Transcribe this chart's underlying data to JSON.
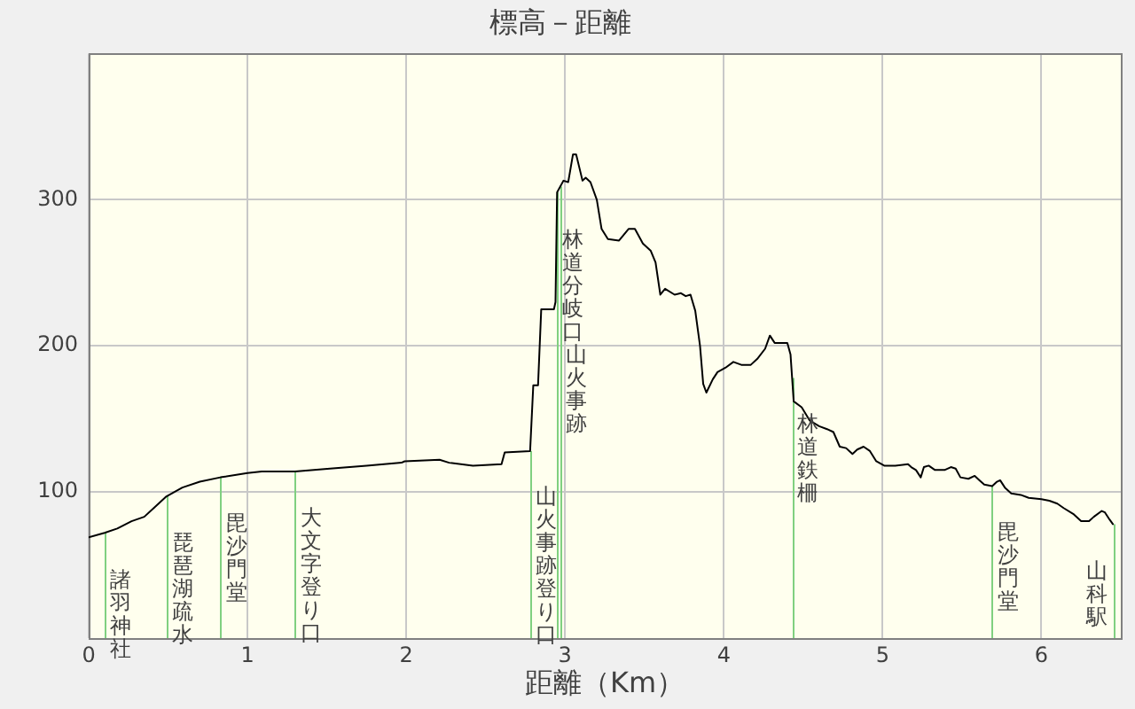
{
  "chart_data": {
    "type": "line",
    "title": "標高－距離",
    "xlabel": "距離（Km）",
    "x": [
      0,
      0.1,
      0.18,
      0.27,
      0.35,
      0.41,
      0.49,
      0.59,
      0.7,
      0.83,
      1.0,
      1.09,
      1.3,
      1.52,
      1.75,
      1.97,
      1.99,
      2.21,
      2.27,
      2.42,
      2.6,
      2.62,
      2.78,
      2.8,
      2.83,
      2.85,
      2.93,
      2.94,
      2.95,
      2.99,
      3.02,
      3.05,
      3.07,
      3.11,
      3.13,
      3.16,
      3.2,
      3.23,
      3.27,
      3.34,
      3.4,
      3.44,
      3.49,
      3.54,
      3.57,
      3.6,
      3.63,
      3.69,
      3.73,
      3.76,
      3.79,
      3.82,
      3.85,
      3.87,
      3.89,
      3.93,
      3.96,
      4.01,
      4.06,
      4.11,
      4.17,
      4.21,
      4.26,
      4.29,
      4.32,
      4.4,
      4.42,
      4.43,
      4.44,
      4.49,
      4.54,
      4.6,
      4.65,
      4.69,
      4.73,
      4.77,
      4.81,
      4.84,
      4.88,
      4.92,
      4.96,
      5.01,
      5.08,
      5.16,
      5.18,
      5.21,
      5.24,
      5.26,
      5.29,
      5.33,
      5.36,
      5.39,
      5.43,
      5.46,
      5.49,
      5.54,
      5.58,
      5.61,
      5.64,
      5.69,
      5.72,
      5.74,
      5.77,
      5.81,
      5.87,
      5.92,
      6.0,
      6.05,
      6.1,
      6.14,
      6.2,
      6.25,
      6.3,
      6.33,
      6.38,
      6.4,
      6.43,
      6.45
    ],
    "values": [
      69,
      72,
      75,
      80,
      83,
      89,
      97,
      103,
      107,
      110,
      113,
      114,
      114,
      116,
      118,
      120,
      121,
      122,
      120,
      118,
      119,
      127,
      128,
      173,
      173,
      225,
      225,
      230,
      305,
      313,
      312,
      331,
      331,
      313,
      315,
      312,
      300,
      280,
      273,
      272,
      280,
      280,
      270,
      265,
      257,
      235,
      239,
      235,
      236,
      234,
      235,
      224,
      200,
      174,
      168,
      177,
      182,
      185,
      189,
      187,
      187,
      191,
      198,
      207,
      202,
      202,
      194,
      178,
      162,
      158,
      149,
      145,
      143,
      141,
      131,
      130,
      126,
      129,
      131,
      128,
      121,
      118,
      118,
      119,
      117,
      115,
      110,
      117,
      118,
      115,
      115,
      115,
      117,
      116,
      110,
      109,
      111,
      108,
      105,
      104,
      107,
      108,
      103,
      99,
      98,
      96,
      95,
      94,
      92,
      89,
      85,
      80,
      80,
      83,
      87,
      86,
      81,
      78
    ],
    "color": "#000000",
    "marker": "none",
    "xlim": [
      0,
      6.5
    ],
    "ylim": [
      0,
      400
    ],
    "xticks": [
      0,
      1,
      2,
      3,
      4,
      5,
      6
    ],
    "yticks": [
      100,
      200,
      300
    ],
    "grid": true,
    "ref_lines": [
      {
        "axis": "x",
        "value": 0.1,
        "label": "諸羽神社",
        "color": "#80d080"
      },
      {
        "axis": "x",
        "value": 0.49,
        "label": "琵琶湖疏水",
        "color": "#80d080"
      },
      {
        "axis": "x",
        "value": 0.83,
        "label": "毘沙門堂",
        "color": "#80d080"
      },
      {
        "axis": "x",
        "value": 1.3,
        "label": "大文字登り口",
        "color": "#80d080"
      },
      {
        "axis": "x",
        "value": 2.78,
        "label": "山火事跡登り口",
        "color": "#80d080"
      },
      {
        "axis": "x",
        "value": 2.95,
        "label": "林道分岐口",
        "color": "#80d080"
      },
      {
        "axis": "x",
        "value": 2.97,
        "label": "山火事跡",
        "color": "#80d080"
      },
      {
        "axis": "x",
        "value": 4.43,
        "label": "林道鉄柵",
        "color": "#80d080"
      },
      {
        "axis": "x",
        "value": 5.69,
        "label": "毘沙門堂",
        "color": "#80d080"
      },
      {
        "axis": "x",
        "value": 6.45,
        "label": "山科駅",
        "color": "#80d080"
      }
    ]
  }
}
